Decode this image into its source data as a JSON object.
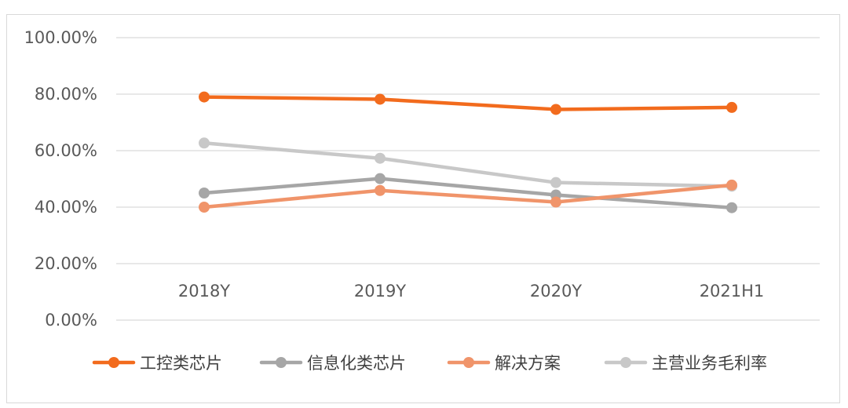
{
  "chart_data": {
    "type": "line",
    "categories": [
      "2018Y",
      "2019Y",
      "2020Y",
      "2021H1"
    ],
    "ylim": [
      0,
      100
    ],
    "yticks": [
      "0.00%",
      "20.00%",
      "40.00%",
      "60.00%",
      "80.00%",
      "100.00%"
    ],
    "grid": true,
    "legend_position": "bottom",
    "series": [
      {
        "name": "工控类芯片",
        "color": "#F26B1D",
        "values": [
          79.0,
          78.2,
          74.6,
          75.3
        ]
      },
      {
        "name": "信息化类芯片",
        "color": "#A6A6A6",
        "values": [
          45.0,
          50.1,
          44.3,
          39.8
        ]
      },
      {
        "name": "解决方案",
        "color": "#F0946A",
        "values": [
          40.0,
          45.9,
          41.8,
          47.8
        ]
      },
      {
        "name": "主营业务毛利率",
        "color": "#C8C8C8",
        "values": [
          62.7,
          57.3,
          48.7,
          47.4
        ]
      }
    ]
  }
}
